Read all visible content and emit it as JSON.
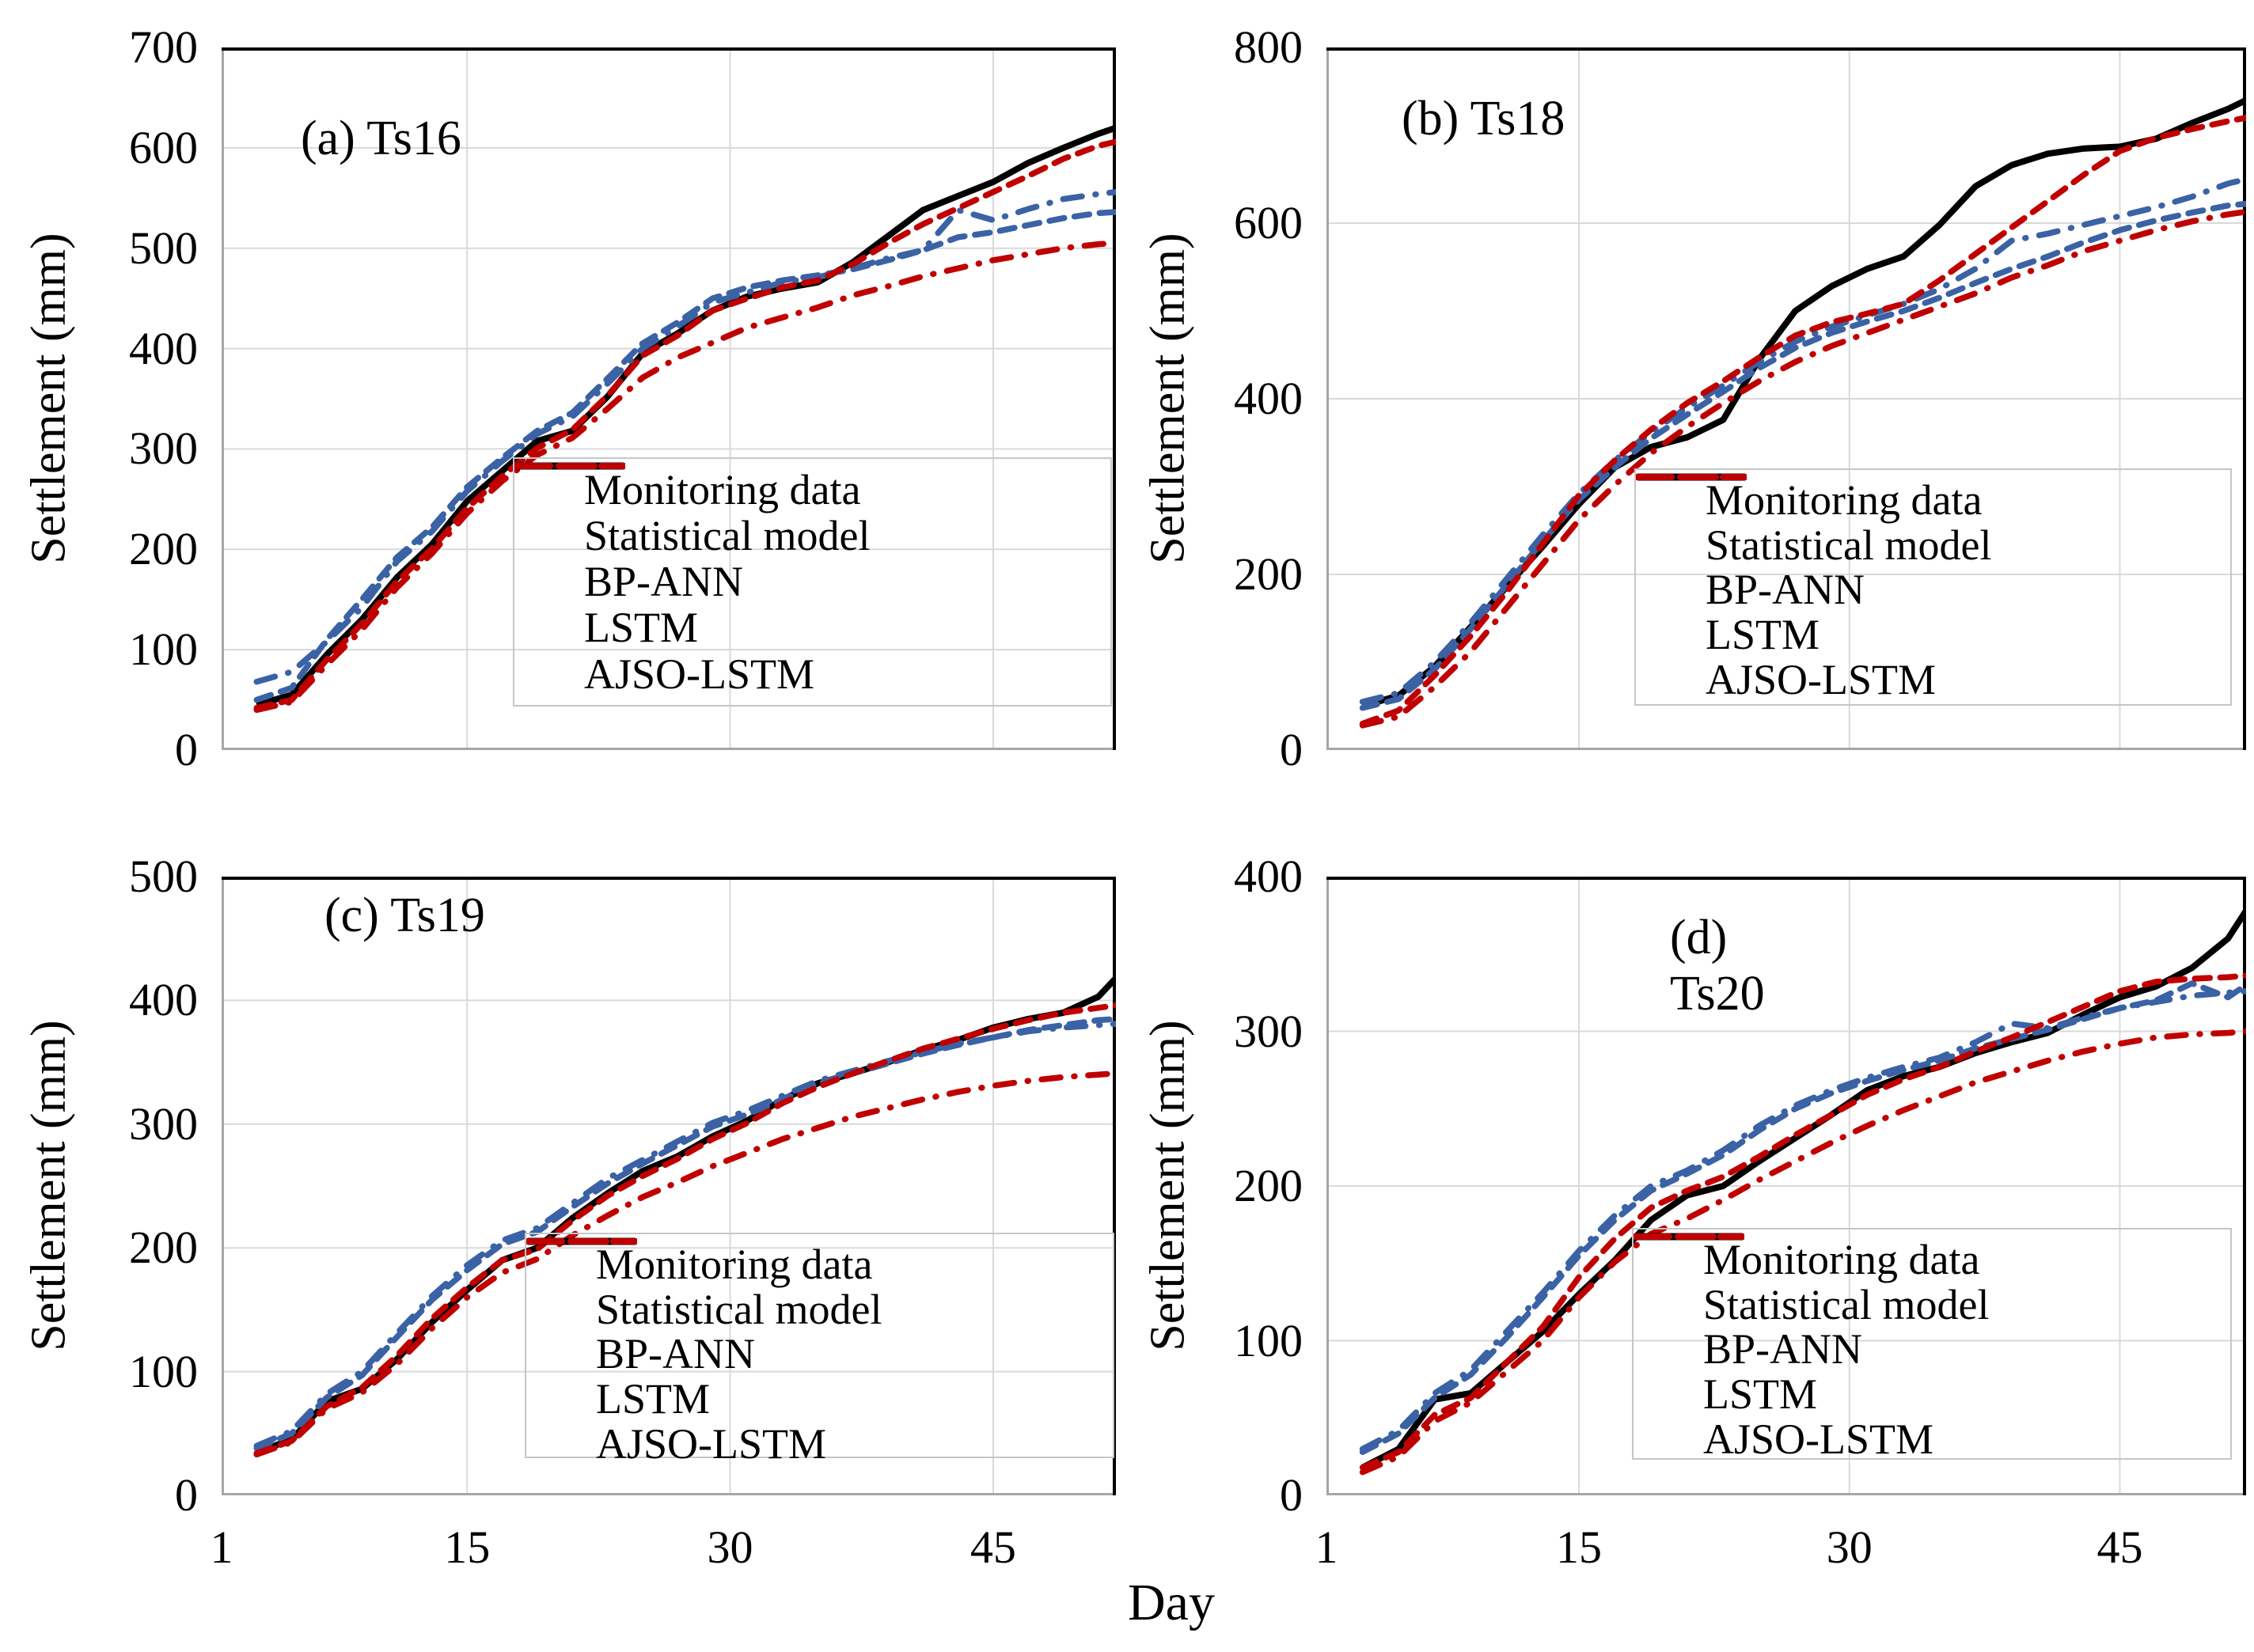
{
  "figure": {
    "xlabel": "Day",
    "ylabel": "Settlement (mm)",
    "colors": {
      "monitoring": "#000000",
      "blue": "#3A62A5",
      "red": "#C00000",
      "grid": "#D9D9D9",
      "axis_gray": "#A6A6A6",
      "border_dark": "#000000",
      "legend_border": "#C6C6C6"
    },
    "legend_items": [
      {
        "label": "Monitoring data",
        "color": "#000000",
        "pattern": "solid"
      },
      {
        "label": "Statistical model",
        "color": "#3A62A5",
        "pattern": "dashdot"
      },
      {
        "label": "BP-ANN",
        "color": "#3A62A5",
        "pattern": "dashed"
      },
      {
        "label": "LSTM",
        "color": "#C00000",
        "pattern": "dashdot"
      },
      {
        "label": "AJSO-LSTM",
        "color": "#C00000",
        "pattern": "dashed"
      }
    ]
  },
  "chart_data": [
    {
      "id": "a",
      "type": "line",
      "title_line1": "(a) Ts16",
      "title_line2": "",
      "ylabel": "Settlement (mm)",
      "ylim": [
        0,
        700
      ],
      "ytick_step": 100,
      "x_range": [
        1,
        52
      ],
      "x_ticks": [
        1,
        15,
        30,
        45
      ],
      "x_tick_labels_visible": false,
      "grid_x": [
        15,
        30,
        45
      ],
      "legend_position": "lower right",
      "days": [
        3,
        5,
        7,
        9,
        11,
        13,
        15,
        17,
        19,
        21,
        23,
        25,
        27,
        29,
        31,
        33,
        35,
        37,
        39,
        41,
        43,
        45,
        47,
        49,
        51,
        52
      ],
      "series": [
        {
          "name": "Monitoring data",
          "values": [
            45,
            55,
            95,
            130,
            172,
            205,
            248,
            278,
            308,
            318,
            352,
            395,
            415,
            438,
            452,
            460,
            466,
            486,
            512,
            538,
            552,
            566,
            585,
            600,
            614,
            620
          ]
        },
        {
          "name": "Statistical model",
          "values": [
            68,
            78,
            108,
            142,
            188,
            218,
            258,
            288,
            315,
            332,
            365,
            400,
            422,
            446,
            456,
            466,
            471,
            480,
            490,
            498,
            538,
            528,
            539,
            549,
            554,
            556
          ]
        },
        {
          "name": "BP-ANN",
          "values": [
            50,
            62,
            110,
            150,
            192,
            222,
            262,
            291,
            318,
            336,
            370,
            405,
            426,
            450,
            461,
            468,
            473,
            479,
            488,
            498,
            511,
            516,
            523,
            530,
            535,
            536
          ]
        },
        {
          "name": "LSTM",
          "values": [
            40,
            48,
            85,
            120,
            162,
            196,
            236,
            268,
            294,
            311,
            340,
            371,
            391,
            406,
            421,
            431,
            441,
            453,
            462,
            472,
            480,
            488,
            494,
            500,
            504,
            505
          ]
        },
        {
          "name": "AJSO-LSTM",
          "values": [
            42,
            50,
            90,
            126,
            168,
            201,
            241,
            273,
            301,
            319,
            353,
            393,
            413,
            438,
            450,
            461,
            468,
            484,
            505,
            524,
            540,
            556,
            572,
            589,
            602,
            606
          ]
        }
      ]
    },
    {
      "id": "b",
      "type": "line",
      "title_line1": "(b) Ts18",
      "title_line2": "",
      "ylabel": "Settlement (mm)",
      "ylim": [
        0,
        800
      ],
      "ytick_step": 200,
      "x_range": [
        1,
        52
      ],
      "x_ticks": [
        1,
        15,
        30,
        45
      ],
      "x_tick_labels_visible": false,
      "grid_x": [
        15,
        30,
        45
      ],
      "legend_position": "lower right",
      "days": [
        3,
        5,
        7,
        9,
        11,
        13,
        15,
        17,
        19,
        21,
        23,
        25,
        27,
        29,
        31,
        33,
        35,
        37,
        39,
        41,
        43,
        45,
        47,
        49,
        51,
        52
      ],
      "series": [
        {
          "name": "Monitoring data",
          "values": [
            50,
            62,
            95,
            140,
            186,
            232,
            280,
            322,
            345,
            356,
            376,
            445,
            500,
            528,
            548,
            562,
            598,
            642,
            666,
            679,
            685,
            687,
            696,
            714,
            730,
            740
          ]
        },
        {
          "name": "Statistical model",
          "values": [
            55,
            65,
            100,
            145,
            195,
            245,
            292,
            330,
            362,
            390,
            415,
            442,
            465,
            482,
            495,
            508,
            525,
            548,
            580,
            588,
            598,
            608,
            618,
            630,
            645,
            650
          ]
        },
        {
          "name": "BP-ANN",
          "values": [
            48,
            58,
            92,
            138,
            188,
            238,
            285,
            322,
            355,
            382,
            408,
            435,
            458,
            475,
            488,
            500,
            515,
            532,
            548,
            562,
            578,
            592,
            603,
            612,
            620,
            622
          ]
        },
        {
          "name": "LSTM",
          "values": [
            28,
            38,
            72,
            112,
            162,
            212,
            262,
            302,
            338,
            368,
            395,
            420,
            442,
            460,
            475,
            490,
            505,
            520,
            538,
            552,
            568,
            580,
            592,
            602,
            610,
            613
          ]
        },
        {
          "name": "AJSO-LSTM",
          "values": [
            30,
            45,
            85,
            130,
            180,
            235,
            290,
            330,
            365,
            395,
            420,
            447,
            472,
            487,
            497,
            508,
            535,
            565,
            595,
            625,
            655,
            682,
            697,
            707,
            716,
            720
          ]
        }
      ]
    },
    {
      "id": "c",
      "type": "line",
      "title_line1": "(c) Ts19",
      "title_line2": "",
      "ylabel": "Settlement (mm)",
      "ylim": [
        0,
        500
      ],
      "ytick_step": 100,
      "x_range": [
        1,
        52
      ],
      "x_ticks": [
        1,
        15,
        30,
        45
      ],
      "x_tick_labels_visible": true,
      "grid_x": [
        15,
        30,
        45
      ],
      "legend_position": "lower right",
      "days": [
        3,
        5,
        7,
        9,
        11,
        13,
        15,
        17,
        19,
        21,
        23,
        25,
        27,
        29,
        31,
        33,
        35,
        37,
        39,
        41,
        43,
        45,
        47,
        49,
        51,
        52
      ],
      "series": [
        {
          "name": "Monitoring data",
          "values": [
            35,
            45,
            76,
            86,
            110,
            140,
            166,
            190,
            200,
            224,
            244,
            262,
            274,
            290,
            303,
            320,
            333,
            341,
            350,
            360,
            368,
            378,
            385,
            390,
            403,
            418
          ]
        },
        {
          "name": "Statistical model",
          "values": [
            40,
            52,
            82,
            100,
            131,
            161,
            186,
            206,
            216,
            236,
            256,
            271,
            286,
            301,
            311,
            323,
            335,
            343,
            351,
            358,
            365,
            370,
            375,
            378,
            380,
            381
          ]
        },
        {
          "name": "BP-ANN",
          "values": [
            38,
            50,
            79,
            97,
            128,
            158,
            182,
            203,
            213,
            233,
            252,
            268,
            283,
            298,
            308,
            320,
            333,
            341,
            349,
            357,
            364,
            370,
            376,
            380,
            384,
            385
          ]
        },
        {
          "name": "LSTM",
          "values": [
            33,
            43,
            70,
            83,
            106,
            135,
            160,
            180,
            191,
            210,
            226,
            241,
            253,
            266,
            277,
            288,
            297,
            306,
            313,
            320,
            326,
            331,
            335,
            338,
            340,
            341
          ]
        },
        {
          "name": "AJSO-LSTM",
          "values": [
            34,
            44,
            72,
            87,
            113,
            143,
            168,
            190,
            199,
            222,
            242,
            258,
            272,
            288,
            301,
            317,
            330,
            341,
            351,
            361,
            369,
            377,
            384,
            390,
            394,
            396
          ]
        }
      ]
    },
    {
      "id": "d",
      "type": "line",
      "title_line1": "(d)",
      "title_line2": "Ts20",
      "ylabel": "Settlement (mm)",
      "ylim": [
        0,
        400
      ],
      "ytick_step": 100,
      "x_range": [
        1,
        52
      ],
      "x_ticks": [
        1,
        15,
        30,
        45
      ],
      "x_tick_labels_visible": true,
      "grid_x": [
        15,
        30,
        45
      ],
      "legend_position": "lower right",
      "days": [
        3,
        5,
        7,
        9,
        11,
        13,
        15,
        17,
        19,
        21,
        23,
        25,
        27,
        29,
        31,
        33,
        35,
        37,
        39,
        41,
        43,
        45,
        47,
        49,
        51,
        52
      ],
      "series": [
        {
          "name": "Monitoring data",
          "values": [
            18,
            30,
            62,
            66,
            86,
            106,
            130,
            152,
            178,
            194,
            200,
            216,
            231,
            246,
            262,
            271,
            277,
            286,
            293,
            299,
            311,
            322,
            329,
            341,
            360,
            378
          ]
        },
        {
          "name": "Statistical model",
          "values": [
            30,
            42,
            66,
            81,
            106,
            131,
            158,
            181,
            200,
            210,
            223,
            239,
            252,
            262,
            270,
            277,
            283,
            293,
            305,
            302,
            309,
            315,
            319,
            323,
            325,
            326
          ]
        },
        {
          "name": "BP-ANN",
          "values": [
            28,
            40,
            63,
            78,
            102,
            128,
            155,
            178,
            197,
            208,
            220,
            236,
            250,
            260,
            268,
            275,
            281,
            289,
            295,
            301,
            308,
            315,
            320,
            331,
            322,
            330
          ]
        },
        {
          "name": "LSTM",
          "values": [
            15,
            25,
            48,
            60,
            80,
            100,
            128,
            151,
            169,
            179,
            191,
            204,
            216,
            228,
            239,
            249,
            258,
            267,
            274,
            281,
            287,
            292,
            296,
            298,
            299,
            300
          ]
        },
        {
          "name": "AJSO-LSTM",
          "values": [
            18,
            28,
            52,
            63,
            86,
            109,
            141,
            166,
            186,
            197,
            206,
            219,
            233,
            246,
            259,
            269,
            277,
            287,
            296,
            306,
            316,
            326,
            332,
            334,
            335,
            336
          ]
        }
      ]
    }
  ]
}
